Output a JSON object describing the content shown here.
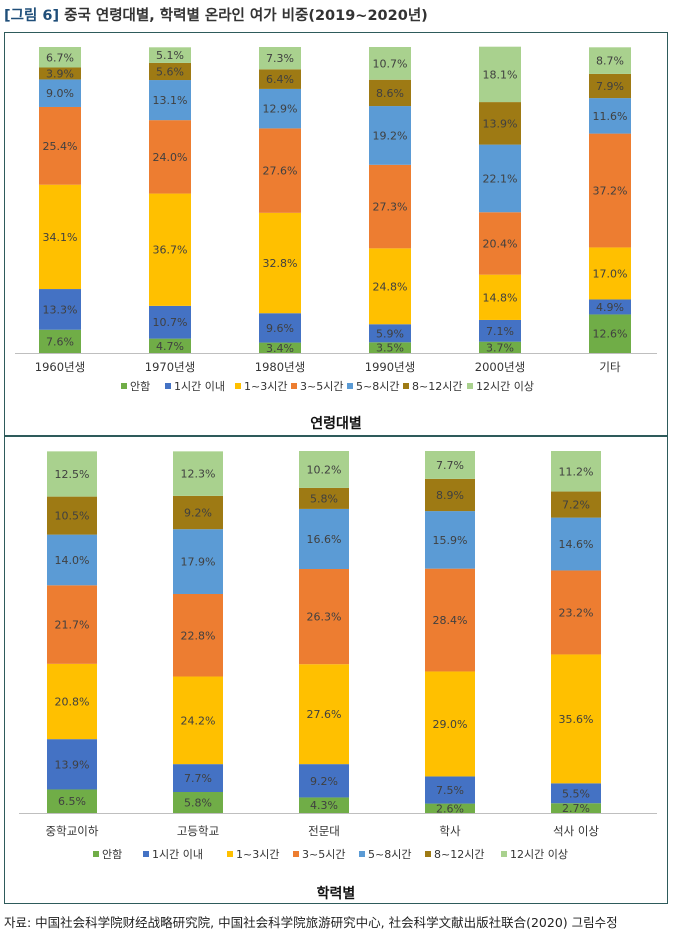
{
  "figure_title": {
    "number": "[그림 6]",
    "text": "중국 연령대별, 학력별 온라인 여가 비중(2019~2020년)"
  },
  "source_note": "자료: 中国社会科学院财经战略研究院, 中国社会科学院旅游研究中心, 社会科学文献出版社联合(2020) 그림수정",
  "legend": [
    "안함",
    "1시간 이내",
    "1~3시간",
    "3~5시간",
    "5~8시간",
    "8~12시간",
    "12시간 이상"
  ],
  "colors": [
    "#70ad47",
    "#4472c4",
    "#ffc000",
    "#ed7d31",
    "#5b9bd5",
    "#9e7a14",
    "#a9d18e"
  ],
  "chart_data": [
    {
      "type": "bar",
      "stacked": true,
      "title": "연령대별",
      "categories": [
        "1960년생",
        "1970년생",
        "1980년생",
        "1990년생",
        "2000년생",
        "기타"
      ],
      "ylim": [
        0,
        100
      ],
      "series": [
        {
          "name": "안함",
          "values": [
            7.6,
            4.7,
            3.4,
            3.5,
            3.7,
            12.6
          ]
        },
        {
          "name": "1시간 이내",
          "values": [
            13.3,
            10.7,
            9.6,
            5.9,
            7.1,
            4.9
          ]
        },
        {
          "name": "1~3시간",
          "values": [
            34.1,
            36.7,
            32.8,
            24.8,
            14.8,
            17.0
          ]
        },
        {
          "name": "3~5시간",
          "values": [
            25.4,
            24.0,
            27.6,
            27.3,
            20.4,
            37.2
          ]
        },
        {
          "name": "5~8시간",
          "values": [
            9.0,
            13.1,
            12.9,
            19.2,
            22.1,
            11.6
          ]
        },
        {
          "name": "8~12시간",
          "values": [
            3.9,
            5.6,
            6.4,
            8.6,
            13.9,
            7.9
          ]
        },
        {
          "name": "12시간 이상",
          "values": [
            6.7,
            5.1,
            7.3,
            10.7,
            18.1,
            8.7
          ]
        }
      ]
    },
    {
      "type": "bar",
      "stacked": true,
      "title": "학력별",
      "categories": [
        "중학교이하",
        "고등학교",
        "전문대",
        "학사",
        "석사 이상"
      ],
      "ylim": [
        0,
        100
      ],
      "series": [
        {
          "name": "안함",
          "values": [
            6.5,
            5.8,
            4.3,
            2.6,
            2.7
          ]
        },
        {
          "name": "1시간 이내",
          "values": [
            13.9,
            7.7,
            9.2,
            7.5,
            5.5
          ]
        },
        {
          "name": "1~3시간",
          "values": [
            20.8,
            24.2,
            27.6,
            29.0,
            35.6
          ]
        },
        {
          "name": "3~5시간",
          "values": [
            21.7,
            22.8,
            26.3,
            28.4,
            23.2
          ]
        },
        {
          "name": "5~8시간",
          "values": [
            14.0,
            17.9,
            16.6,
            15.9,
            14.6
          ]
        },
        {
          "name": "8~12시간",
          "values": [
            10.5,
            9.2,
            5.8,
            8.9,
            7.2
          ]
        },
        {
          "name": "12시간 이상",
          "values": [
            12.5,
            12.3,
            10.2,
            7.7,
            11.2
          ]
        }
      ]
    }
  ]
}
